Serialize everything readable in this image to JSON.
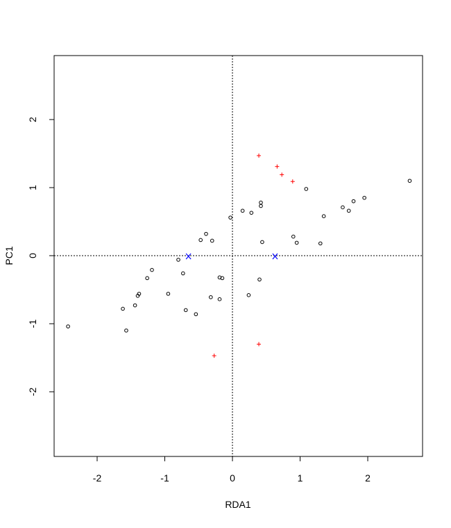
{
  "chart_data": {
    "type": "scatter",
    "title": "",
    "xlabel": "RDA1",
    "ylabel": "PC1",
    "xlim": [
      -2.636,
      2.81
    ],
    "ylim": [
      -2.95,
      2.94
    ],
    "xticks": [
      -2,
      -1,
      0,
      1,
      2
    ],
    "yticks": [
      -2,
      -1,
      0,
      1,
      2
    ],
    "xtick_labels": [
      "-2",
      "-1",
      "0",
      "1",
      "2"
    ],
    "ytick_labels": [
      "-2",
      "-1",
      "0",
      "1",
      "2"
    ],
    "grid": false,
    "reference_lines": {
      "x": 0,
      "y": 0,
      "style": "dotted"
    },
    "series": [
      {
        "marker": "open-circle",
        "color": "#000000",
        "points": [
          [
            -2.43,
            -1.04
          ],
          [
            -1.62,
            -0.78
          ],
          [
            -1.57,
            -1.1
          ],
          [
            -1.44,
            -0.73
          ],
          [
            -1.4,
            -0.59
          ],
          [
            -1.38,
            -0.56
          ],
          [
            -1.26,
            -0.33
          ],
          [
            -1.19,
            -0.21
          ],
          [
            -0.95,
            -0.56
          ],
          [
            -0.8,
            -0.06
          ],
          [
            -0.73,
            -0.26
          ],
          [
            -0.69,
            -0.8
          ],
          [
            -0.54,
            -0.86
          ],
          [
            -0.47,
            0.23
          ],
          [
            -0.39,
            0.32
          ],
          [
            -0.3,
            0.22
          ],
          [
            -0.32,
            -0.61
          ],
          [
            -0.19,
            -0.32
          ],
          [
            -0.15,
            -0.33
          ],
          [
            -0.19,
            -0.64
          ],
          [
            -0.03,
            0.56
          ],
          [
            0.15,
            0.66
          ],
          [
            0.28,
            0.63
          ],
          [
            0.42,
            0.78
          ],
          [
            0.42,
            0.73
          ],
          [
            0.24,
            -0.58
          ],
          [
            0.4,
            -0.35
          ],
          [
            0.44,
            0.2
          ],
          [
            0.9,
            0.28
          ],
          [
            0.95,
            0.19
          ],
          [
            1.09,
            0.98
          ],
          [
            1.3,
            0.18
          ],
          [
            1.35,
            0.58
          ],
          [
            1.63,
            0.71
          ],
          [
            1.72,
            0.66
          ],
          [
            1.79,
            0.8
          ],
          [
            1.95,
            0.85
          ],
          [
            2.62,
            1.1
          ]
        ]
      },
      {
        "marker": "plus",
        "color": "#ff0000",
        "points": [
          [
            0.39,
            1.47
          ],
          [
            0.66,
            1.31
          ],
          [
            0.73,
            1.19
          ],
          [
            0.89,
            1.09
          ],
          [
            -0.27,
            -1.47
          ],
          [
            0.39,
            -1.3
          ]
        ]
      },
      {
        "marker": "x",
        "color": "#0000ff",
        "points": [
          [
            -0.65,
            -0.01
          ],
          [
            0.63,
            -0.01
          ]
        ]
      }
    ]
  }
}
